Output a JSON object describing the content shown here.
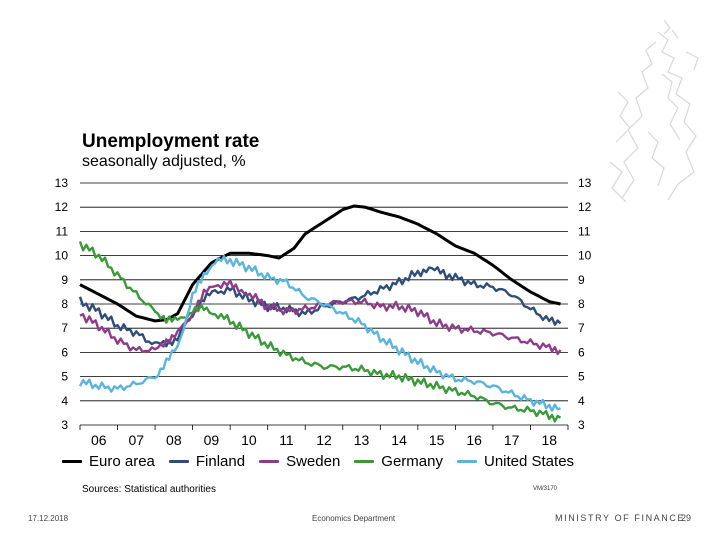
{
  "title": "Unemployment rate",
  "subtitle": "seasonally adjusted, %",
  "source": "Sources: Statistical authorities",
  "chart_code": "VM/3170",
  "footer": {
    "date": "17.12.2018",
    "department": "Economics Department",
    "ministry": "MINISTRY OF FINANCE",
    "page": "29"
  },
  "chart_data": {
    "type": "line",
    "title": "Unemployment rate",
    "subtitle": "seasonally adjusted, %",
    "xlabel": "",
    "ylabel": "%",
    "x_range": [
      2006,
      2019
    ],
    "ylim": [
      3,
      13
    ],
    "y_ticks": [
      3,
      4,
      5,
      6,
      7,
      8,
      9,
      10,
      11,
      12,
      13
    ],
    "y_tick_labels": [
      "3",
      "4",
      "5",
      "6",
      "7",
      "8",
      "9",
      "10",
      "11",
      "12",
      "13"
    ],
    "x_ticks": [
      2006,
      2007,
      2008,
      2009,
      2010,
      2011,
      2012,
      2013,
      2014,
      2015,
      2016,
      2017,
      2018
    ],
    "x_tick_labels": [
      "06",
      "07",
      "08",
      "09",
      "10",
      "11",
      "12",
      "13",
      "14",
      "15",
      "16",
      "17",
      "18"
    ],
    "grid": true,
    "legend_position": "bottom",
    "series": [
      {
        "name": "Euro area",
        "color": "#000000",
        "x": [
          2006,
          2006.5,
          2007,
          2007.5,
          2008,
          2008.3,
          2008.6,
          2009,
          2009.5,
          2010,
          2010.5,
          2011,
          2011.3,
          2011.7,
          2012,
          2012.5,
          2013,
          2013.3,
          2013.6,
          2014,
          2014.5,
          2015,
          2015.5,
          2016,
          2016.5,
          2017,
          2017.5,
          2018,
          2018.5,
          2018.8
        ],
        "y": [
          8.8,
          8.4,
          8.0,
          7.5,
          7.3,
          7.35,
          7.6,
          8.8,
          9.7,
          10.1,
          10.1,
          10.0,
          9.9,
          10.3,
          10.9,
          11.4,
          11.9,
          12.05,
          12.0,
          11.8,
          11.6,
          11.3,
          10.9,
          10.4,
          10.1,
          9.6,
          9.0,
          8.5,
          8.1,
          8.0
        ]
      },
      {
        "name": "Finland",
        "color": "#2f4d7a",
        "x": [
          2006,
          2006.5,
          2007,
          2007.5,
          2008,
          2008.3,
          2008.6,
          2009,
          2009.3,
          2009.6,
          2010,
          2010.5,
          2011,
          2011.5,
          2012,
          2012.5,
          2013,
          2013.5,
          2014,
          2014.5,
          2015,
          2015.3,
          2015.6,
          2016,
          2016.5,
          2017,
          2017.5,
          2018,
          2018.5,
          2018.8
        ],
        "y": [
          8.1,
          7.7,
          7.1,
          6.8,
          6.3,
          6.4,
          6.6,
          7.6,
          8.2,
          8.5,
          8.6,
          8.2,
          7.9,
          7.8,
          7.6,
          7.9,
          8.1,
          8.3,
          8.6,
          8.9,
          9.3,
          9.5,
          9.3,
          9.1,
          8.8,
          8.7,
          8.4,
          7.8,
          7.3,
          7.2
        ]
      },
      {
        "name": "Sweden",
        "color": "#8e3b8a",
        "x": [
          2006,
          2006.5,
          2007,
          2007.5,
          2008,
          2008.3,
          2008.6,
          2009,
          2009.3,
          2009.6,
          2010,
          2010.3,
          2010.6,
          2011,
          2011.5,
          2012,
          2012.5,
          2013,
          2013.5,
          2014,
          2014.5,
          2015,
          2015.5,
          2016,
          2016.5,
          2017,
          2017.5,
          2018,
          2018.5,
          2018.8
        ],
        "y": [
          7.6,
          7.1,
          6.5,
          6.1,
          6.1,
          6.5,
          6.8,
          7.6,
          8.4,
          8.8,
          8.8,
          8.6,
          8.3,
          7.9,
          7.7,
          7.8,
          8.0,
          8.1,
          8.1,
          7.9,
          7.9,
          7.7,
          7.2,
          7.0,
          6.9,
          6.8,
          6.6,
          6.4,
          6.2,
          6.1
        ]
      },
      {
        "name": "Germany",
        "color": "#3a9a3a",
        "x": [
          2006,
          2006.5,
          2007,
          2007.5,
          2008,
          2008.3,
          2008.6,
          2009,
          2009.3,
          2009.6,
          2010,
          2010.5,
          2011,
          2011.5,
          2012,
          2012.5,
          2013,
          2013.5,
          2014,
          2014.5,
          2015,
          2015.5,
          2016,
          2016.5,
          2017,
          2017.5,
          2018,
          2018.5,
          2018.8
        ],
        "y": [
          10.5,
          10.0,
          9.2,
          8.4,
          7.7,
          7.4,
          7.3,
          7.7,
          7.8,
          7.6,
          7.3,
          6.8,
          6.3,
          5.9,
          5.6,
          5.4,
          5.4,
          5.3,
          5.1,
          5.0,
          4.8,
          4.6,
          4.4,
          4.2,
          3.9,
          3.7,
          3.6,
          3.4,
          3.3
        ]
      },
      {
        "name": "United States",
        "color": "#5ab4dc",
        "x": [
          2006,
          2006.5,
          2007,
          2007.5,
          2008,
          2008.3,
          2008.6,
          2009,
          2009.3,
          2009.6,
          2010,
          2010.5,
          2011,
          2011.5,
          2012,
          2012.5,
          2013,
          2013.5,
          2014,
          2014.5,
          2015,
          2015.5,
          2016,
          2016.5,
          2017,
          2017.5,
          2018,
          2018.5,
          2018.8
        ],
        "y": [
          4.8,
          4.6,
          4.5,
          4.7,
          5.0,
          5.6,
          6.2,
          8.3,
          9.2,
          9.8,
          9.8,
          9.5,
          9.1,
          8.9,
          8.3,
          8.0,
          7.6,
          7.2,
          6.6,
          6.1,
          5.6,
          5.2,
          4.9,
          4.8,
          4.6,
          4.3,
          4.0,
          3.8,
          3.7
        ]
      }
    ]
  }
}
